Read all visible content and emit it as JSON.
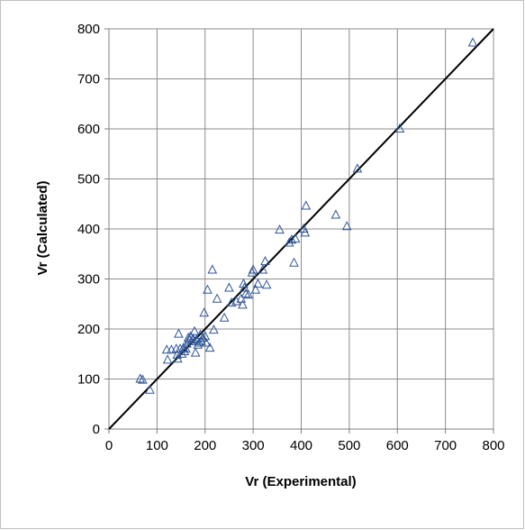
{
  "chart_data": {
    "type": "scatter",
    "title": "",
    "xlabel": "Vr (Experimental)",
    "ylabel": "Vr (Calculated)",
    "xlim": [
      0,
      800
    ],
    "ylim": [
      0,
      800
    ],
    "x_ticks": [
      0,
      100,
      200,
      300,
      400,
      500,
      600,
      700,
      800
    ],
    "y_ticks": [
      0,
      100,
      200,
      300,
      400,
      500,
      600,
      700,
      800
    ],
    "grid": true,
    "legend": "none",
    "marker": "open-triangle",
    "marker_color": "#2f5597",
    "series": [
      {
        "points": [
          [
            65,
            100
          ],
          [
            70,
            98
          ],
          [
            85,
            78
          ],
          [
            120,
            158
          ],
          [
            122,
            138
          ],
          [
            130,
            158
          ],
          [
            140,
            160
          ],
          [
            142,
            148
          ],
          [
            143,
            140
          ],
          [
            145,
            190
          ],
          [
            148,
            160
          ],
          [
            152,
            150
          ],
          [
            155,
            162
          ],
          [
            157,
            155
          ],
          [
            160,
            160
          ],
          [
            162,
            170
          ],
          [
            165,
            182
          ],
          [
            168,
            178
          ],
          [
            170,
            185
          ],
          [
            172,
            175
          ],
          [
            175,
            180
          ],
          [
            178,
            195
          ],
          [
            180,
            152
          ],
          [
            182,
            178
          ],
          [
            185,
            168
          ],
          [
            188,
            172
          ],
          [
            190,
            188
          ],
          [
            192,
            175
          ],
          [
            195,
            182
          ],
          [
            198,
            232
          ],
          [
            200,
            185
          ],
          [
            202,
            172
          ],
          [
            205,
            278
          ],
          [
            210,
            162
          ],
          [
            215,
            318
          ],
          [
            218,
            198
          ],
          [
            225,
            260
          ],
          [
            240,
            222
          ],
          [
            250,
            282
          ],
          [
            255,
            252
          ],
          [
            265,
            255
          ],
          [
            275,
            260
          ],
          [
            278,
            248
          ],
          [
            280,
            290
          ],
          [
            282,
            282
          ],
          [
            285,
            270
          ],
          [
            290,
            268
          ],
          [
            298,
            312
          ],
          [
            300,
            318
          ],
          [
            305,
            278
          ],
          [
            310,
            290
          ],
          [
            320,
            318
          ],
          [
            325,
            335
          ],
          [
            328,
            288
          ],
          [
            355,
            398
          ],
          [
            375,
            372
          ],
          [
            380,
            378
          ],
          [
            385,
            332
          ],
          [
            388,
            380
          ],
          [
            405,
            400
          ],
          [
            408,
            392
          ],
          [
            410,
            446
          ],
          [
            472,
            428
          ],
          [
            495,
            405
          ],
          [
            517,
            520
          ],
          [
            605,
            600
          ],
          [
            757,
            772
          ]
        ]
      },
      {
        "type": "line",
        "points": [
          [
            0,
            0
          ],
          [
            800,
            800
          ]
        ]
      }
    ]
  }
}
